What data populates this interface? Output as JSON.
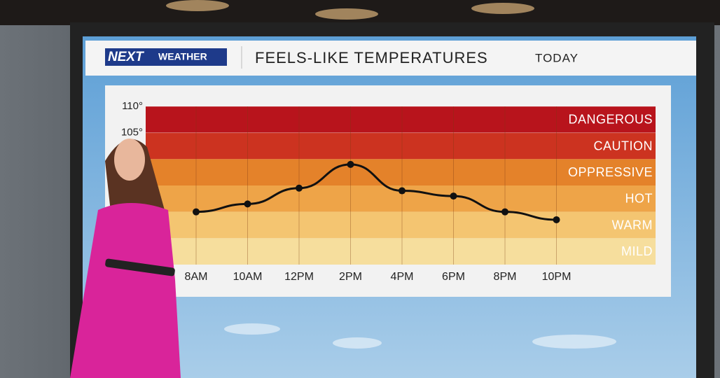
{
  "branding": {
    "logo": "NEXT",
    "tagline": "WEATHER"
  },
  "chart_data": {
    "type": "line",
    "title": "FEELS-LIKE TEMPERATURES",
    "subtitle": "TODAY",
    "categories": [
      "8AM",
      "10AM",
      "12PM",
      "2PM",
      "4PM",
      "6PM",
      "8PM",
      "10PM"
    ],
    "values": [
      90,
      91.5,
      94.5,
      99,
      94,
      93,
      90,
      88.5
    ],
    "color": "#111111",
    "ylim": [
      80,
      110
    ],
    "yticks": [
      {
        "value": 110,
        "label": "110°"
      },
      {
        "value": 105,
        "label": "105°"
      }
    ],
    "grid": true,
    "bands": [
      {
        "label": "DANGEROUS",
        "from": 105,
        "to": 110,
        "color": "#b8141c"
      },
      {
        "label": "CAUTION",
        "from": 100,
        "to": 105,
        "color": "#cc3320"
      },
      {
        "label": "OPPRESSIVE",
        "from": 95,
        "to": 100,
        "color": "#e4822a"
      },
      {
        "label": "HOT",
        "from": 90,
        "to": 95,
        "color": "#eea448"
      },
      {
        "label": "WARM",
        "from": 85,
        "to": 90,
        "color": "#f4c571"
      },
      {
        "label": "MILD",
        "from": 80,
        "to": 85,
        "color": "#f6de9d"
      }
    ]
  }
}
